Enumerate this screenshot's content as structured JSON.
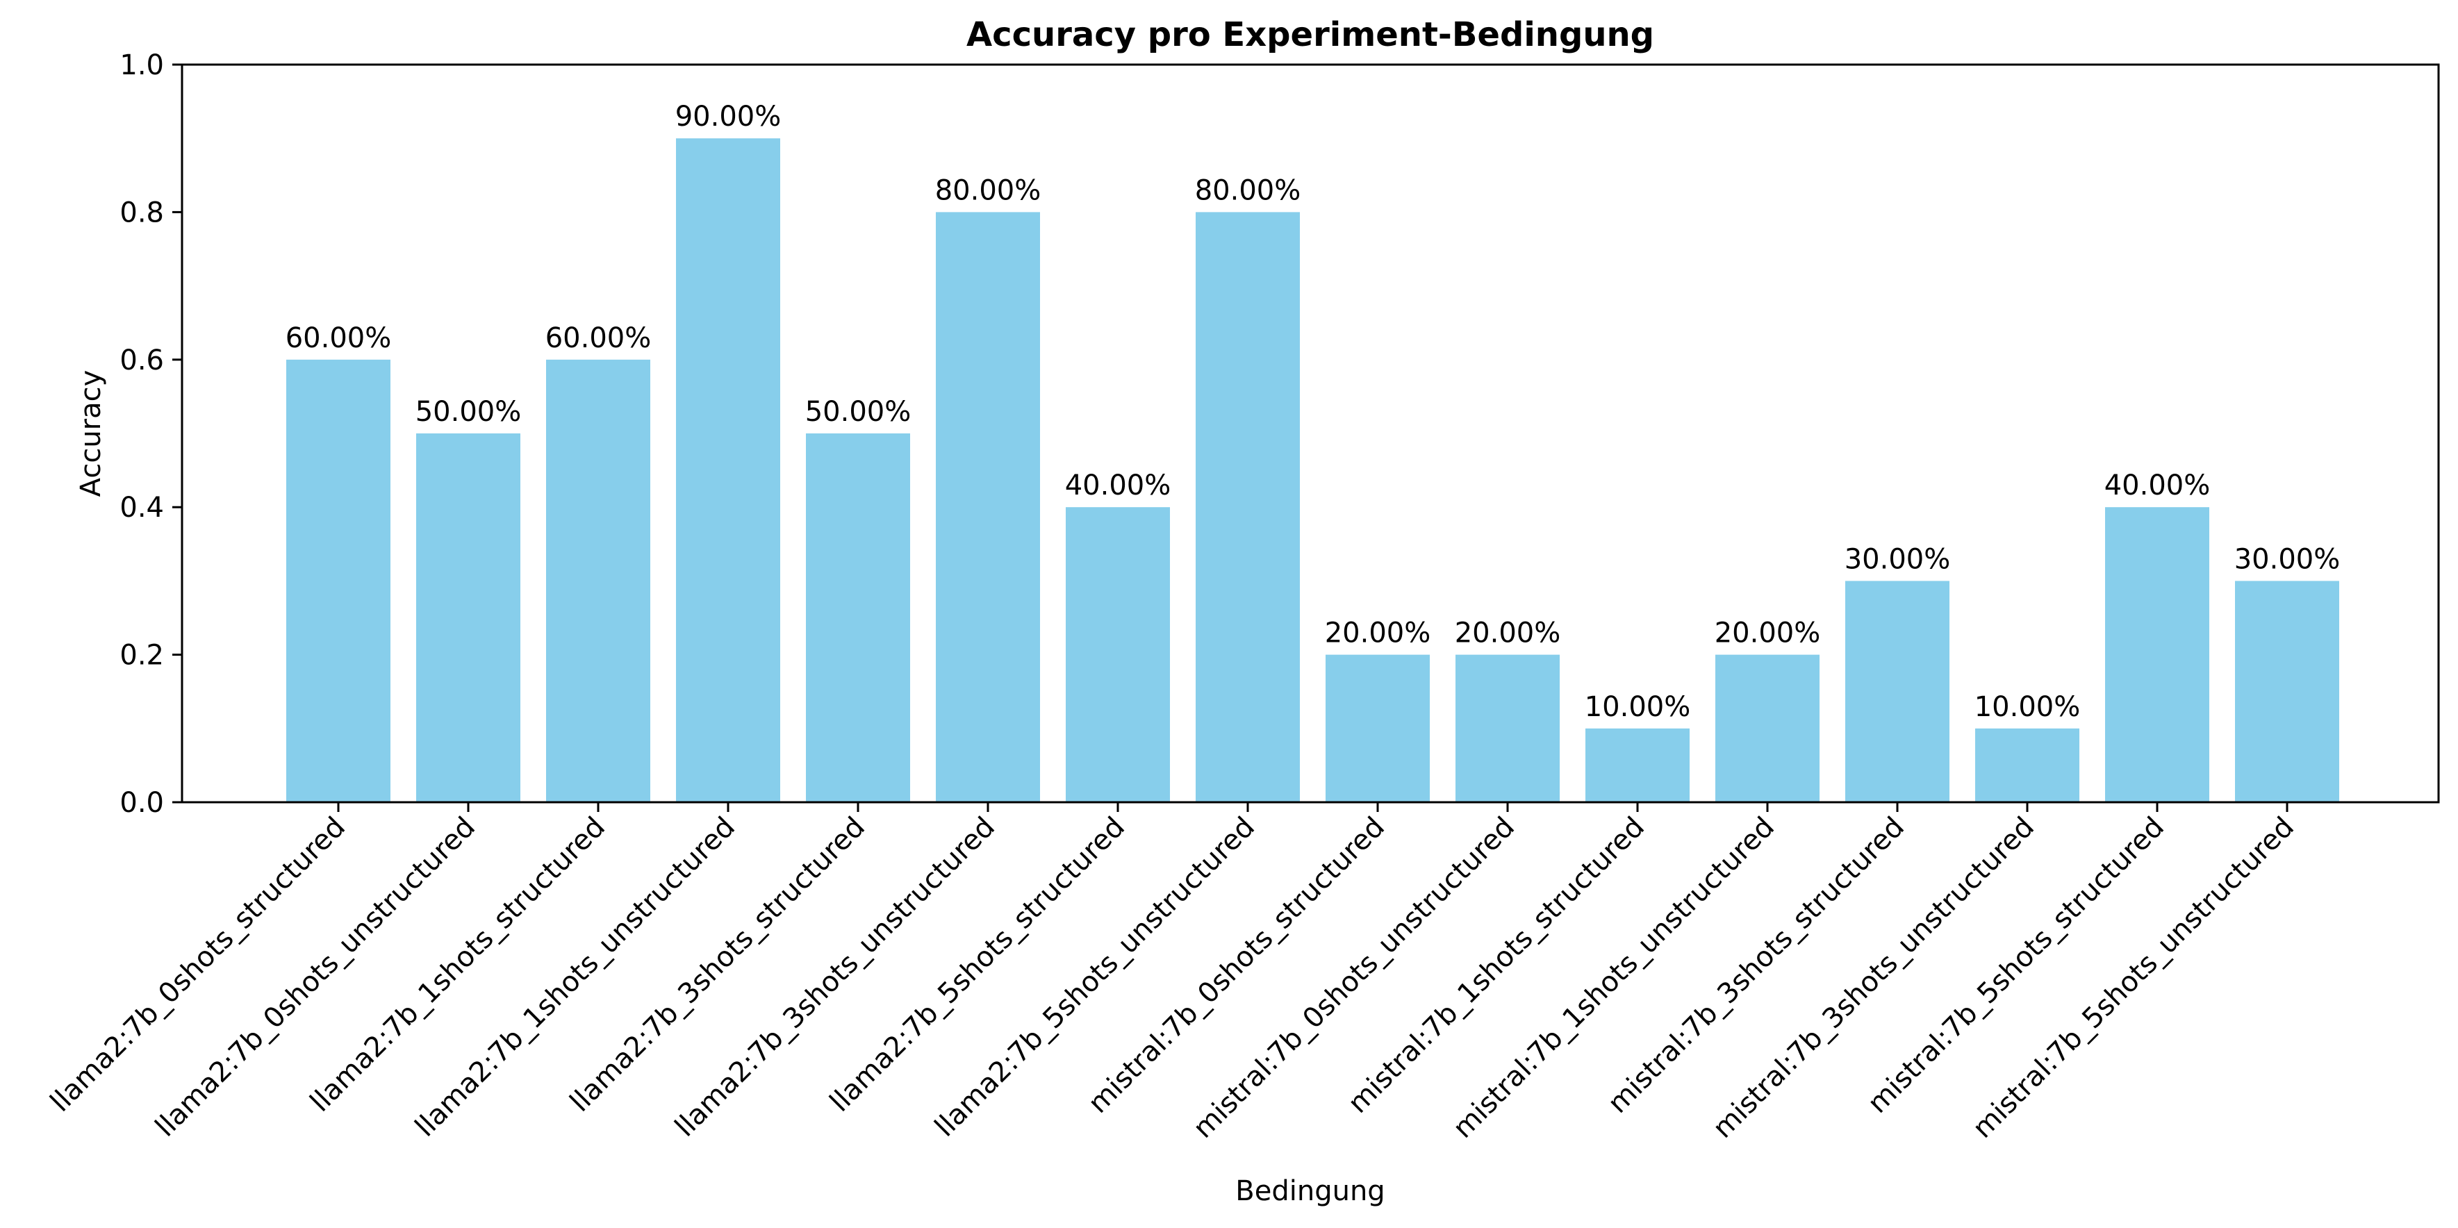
{
  "chart_data": {
    "type": "bar",
    "title": "Accuracy pro Experiment-Bedingung",
    "xlabel": "Bedingung",
    "ylabel": "Accuracy",
    "ylim": [
      0,
      1.0
    ],
    "yticks": [
      "0.0",
      "0.2",
      "0.4",
      "0.6",
      "0.8",
      "1.0"
    ],
    "grid": false,
    "bar_color": "#87CEEB",
    "categories": [
      "llama2:7b_0shots_structured",
      "llama2:7b_0shots_unstructured",
      "llama2:7b_1shots_structured",
      "llama2:7b_1shots_unstructured",
      "llama2:7b_3shots_structured",
      "llama2:7b_3shots_unstructured",
      "llama2:7b_5shots_structured",
      "llama2:7b_5shots_unstructured",
      "mistral:7b_0shots_structured",
      "mistral:7b_0shots_unstructured",
      "mistral:7b_1shots_structured",
      "mistral:7b_1shots_unstructured",
      "mistral:7b_3shots_structured",
      "mistral:7b_3shots_unstructured",
      "mistral:7b_5shots_structured",
      "mistral:7b_5shots_unstructured"
    ],
    "values": [
      0.6,
      0.5,
      0.6,
      0.9,
      0.5,
      0.8,
      0.4,
      0.8,
      0.2,
      0.2,
      0.1,
      0.2,
      0.3,
      0.1,
      0.4,
      0.3
    ],
    "data_labels": [
      "60.00%",
      "50.00%",
      "60.00%",
      "90.00%",
      "50.00%",
      "80.00%",
      "40.00%",
      "80.00%",
      "20.00%",
      "20.00%",
      "10.00%",
      "20.00%",
      "30.00%",
      "10.00%",
      "40.00%",
      "30.00%"
    ]
  }
}
